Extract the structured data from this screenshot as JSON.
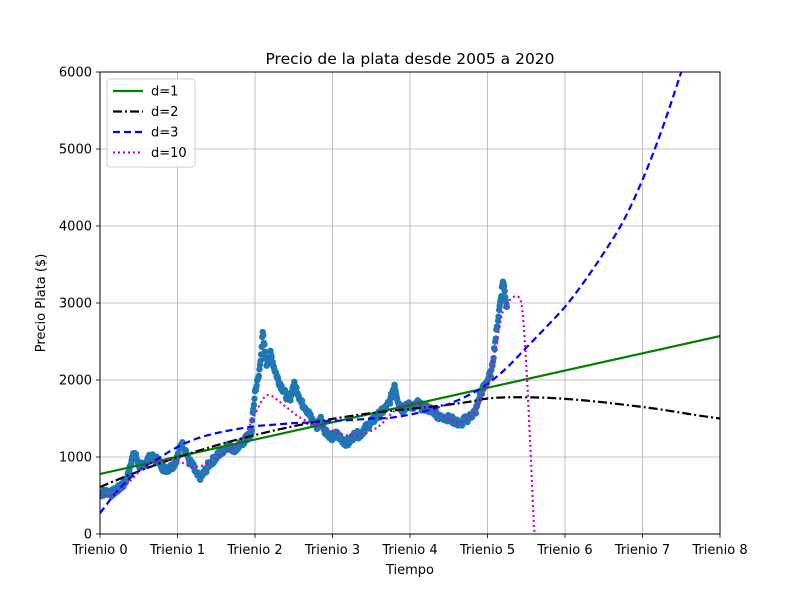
{
  "chart_data": {
    "type": "line",
    "title": "Precio de la plata desde 2005 a 2020",
    "xlabel": "Tiempo",
    "ylabel": "Precio Plata ($)",
    "xlim": [
      0,
      8
    ],
    "ylim": [
      0,
      6000
    ],
    "x_tick_labels": [
      "Trienio 0",
      "Trienio 1",
      "Trienio 2",
      "Trienio 3",
      "Trienio 4",
      "Trienio 5",
      "Trienio 6",
      "Trienio 7",
      "Trienio 8"
    ],
    "y_ticks": [
      0,
      1000,
      2000,
      3000,
      4000,
      5000,
      6000
    ],
    "grid": true,
    "legend_position": "top-left",
    "data_color": "#1f77b4",
    "data_points": {
      "x": [
        0.0,
        0.05,
        0.1,
        0.15,
        0.2,
        0.25,
        0.3,
        0.35,
        0.4,
        0.45,
        0.5,
        0.55,
        0.6,
        0.65,
        0.7,
        0.75,
        0.8,
        0.85,
        0.9,
        0.95,
        1.0,
        1.05,
        1.1,
        1.15,
        1.2,
        1.25,
        1.3,
        1.35,
        1.4,
        1.45,
        1.5,
        1.55,
        1.6,
        1.65,
        1.7,
        1.75,
        1.8,
        1.85,
        1.9,
        1.95,
        2.0,
        2.05,
        2.1,
        2.15,
        2.2,
        2.25,
        2.3,
        2.35,
        2.4,
        2.45,
        2.5,
        2.55,
        2.6,
        2.65,
        2.7,
        2.75,
        2.8,
        2.85,
        2.9,
        2.95,
        3.0,
        3.05,
        3.1,
        3.15,
        3.2,
        3.25,
        3.3,
        3.35,
        3.4,
        3.45,
        3.5,
        3.55,
        3.6,
        3.65,
        3.7,
        3.75,
        3.8,
        3.85,
        3.9,
        3.95,
        4.0,
        4.05,
        4.1,
        4.15,
        4.2,
        4.25,
        4.3,
        4.35,
        4.4,
        4.45,
        4.5,
        4.55,
        4.6,
        4.65,
        4.7,
        4.75,
        4.8,
        4.85,
        4.9,
        4.95,
        5.0,
        5.05,
        5.1,
        5.15,
        5.2,
        5.25
      ],
      "y": [
        520,
        540,
        550,
        530,
        560,
        600,
        650,
        720,
        950,
        1050,
        900,
        880,
        950,
        1000,
        980,
        960,
        870,
        840,
        860,
        900,
        1000,
        1180,
        1100,
        950,
        880,
        760,
        740,
        800,
        900,
        950,
        1000,
        1050,
        1100,
        1150,
        1120,
        1100,
        1150,
        1200,
        1250,
        1300,
        1850,
        2050,
        2600,
        2200,
        2350,
        2150,
        2000,
        1900,
        1800,
        1750,
        1950,
        1850,
        1700,
        1650,
        1550,
        1450,
        1400,
        1500,
        1350,
        1300,
        1250,
        1300,
        1250,
        1200,
        1180,
        1250,
        1300,
        1280,
        1350,
        1400,
        1450,
        1500,
        1550,
        1600,
        1650,
        1750,
        1950,
        1700,
        1620,
        1650,
        1680,
        1650,
        1700,
        1650,
        1640,
        1620,
        1600,
        1550,
        1500,
        1520,
        1500,
        1480,
        1450,
        1420,
        1480,
        1500,
        1550,
        1600,
        1800,
        1900,
        2000,
        2100,
        2500,
        2900,
        3300,
        2950
      ]
    },
    "series": [
      {
        "name": "d=1",
        "color": "#008000",
        "dash": "solid",
        "x": [
          0,
          8
        ],
        "y": [
          780,
          2570
        ]
      },
      {
        "name": "d=2",
        "color": "#000000",
        "dash": "dashdot",
        "x": [
          0,
          0.25,
          0.5,
          0.75,
          1.0,
          1.25,
          1.5,
          1.75,
          2.0,
          2.25,
          2.5,
          2.75,
          3.0,
          3.25,
          3.5,
          3.75,
          4.0,
          4.25,
          4.5,
          4.75,
          5.0,
          5.25,
          5.5,
          5.75,
          6.0,
          6.25,
          6.5,
          6.75,
          7.0,
          7.25,
          7.5,
          7.75,
          8.0
        ],
        "y": [
          610,
          715,
          815,
          910,
          995,
          1075,
          1150,
          1220,
          1285,
          1345,
          1400,
          1450,
          1495,
          1535,
          1570,
          1600,
          1625,
          1650,
          1680,
          1715,
          1760,
          1775,
          1775,
          1770,
          1755,
          1735,
          1710,
          1680,
          1650,
          1615,
          1575,
          1535,
          1500
        ]
      },
      {
        "name": "d=3",
        "color": "#0000ff",
        "dash": "dashed",
        "x": [
          0,
          0.25,
          0.5,
          0.75,
          1.0,
          1.25,
          1.5,
          1.75,
          2.0,
          2.25,
          2.5,
          2.75,
          3.0,
          3.25,
          3.5,
          3.75,
          4.0,
          4.25,
          4.5,
          4.75,
          5.0,
          5.25,
          5.5,
          5.75,
          6.0,
          6.25,
          6.5,
          6.75,
          7.0,
          7.25,
          7.5
        ],
        "y": [
          270,
          590,
          820,
          980,
          1130,
          1240,
          1310,
          1360,
          1400,
          1420,
          1440,
          1450,
          1470,
          1480,
          1500,
          1510,
          1550,
          1610,
          1690,
          1800,
          1950,
          2160,
          2420,
          2680,
          2950,
          3280,
          3650,
          4060,
          4600,
          5250,
          6000
        ]
      },
      {
        "name": "d=10",
        "color": "#cc00cc",
        "dash": "dotted",
        "x": [
          0,
          0.2,
          0.4,
          0.6,
          0.8,
          1.0,
          1.2,
          1.4,
          1.6,
          1.8,
          1.9,
          2.0,
          2.1,
          2.2,
          2.4,
          2.6,
          2.8,
          3.0,
          3.2,
          3.4,
          3.6,
          3.8,
          4.0,
          4.2,
          4.4,
          4.6,
          4.8,
          5.0,
          5.1,
          5.2,
          5.3,
          5.4,
          5.45,
          5.5,
          5.55,
          5.6,
          5.62
        ],
        "y": [
          500,
          520,
          700,
          900,
          950,
          950,
          870,
          920,
          1050,
          1200,
          1350,
          1550,
          1750,
          1800,
          1650,
          1500,
          1420,
          1340,
          1280,
          1300,
          1400,
          1600,
          1700,
          1650,
          1550,
          1450,
          1550,
          1950,
          2400,
          2900,
          3050,
          3080,
          2900,
          2200,
          1200,
          100,
          0
        ]
      }
    ]
  }
}
